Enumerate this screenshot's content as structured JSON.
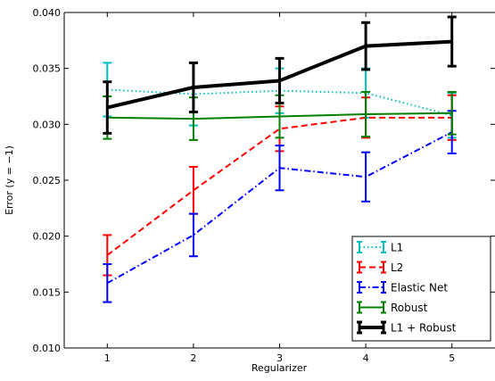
{
  "chart_data": {
    "type": "line",
    "title": "",
    "xlabel": "Regularizer",
    "ylabel": "Error (y = −1)",
    "x": [
      1,
      2,
      3,
      4,
      5
    ],
    "xlim": [
      0.5,
      5.5
    ],
    "ylim": [
      0.01,
      0.04
    ],
    "xticks": [
      "1",
      "2",
      "3",
      "4",
      "5"
    ],
    "yticks": [
      "0.010",
      "0.015",
      "0.020",
      "0.025",
      "0.030",
      "0.035",
      "0.040"
    ],
    "grid": false,
    "legend_position": "lower-right",
    "series": [
      {
        "name": "L1",
        "color": "#00bfbf",
        "line_style": "dotted",
        "values": [
          0.0331,
          0.0327,
          0.033,
          0.0328,
          0.0308
        ],
        "error": [
          0.0024,
          0.0028,
          0.002,
          0.0022,
          0.002
        ]
      },
      {
        "name": "L2",
        "color": "#ff0000",
        "line_style": "dashed",
        "values": [
          0.0183,
          0.0241,
          0.0296,
          0.0306,
          0.0306
        ],
        "error": [
          0.0018,
          0.0021,
          0.002,
          0.0018,
          0.002
        ]
      },
      {
        "name": "Elastic Net",
        "color": "#0000ff",
        "line_style": "dash-dot",
        "values": [
          0.0158,
          0.0201,
          0.0261,
          0.0253,
          0.0293
        ],
        "error": [
          0.0017,
          0.0019,
          0.002,
          0.0022,
          0.0019
        ]
      },
      {
        "name": "Robust",
        "color": "#007f00",
        "line_style": "solid",
        "values": [
          0.0306,
          0.0305,
          0.0307,
          0.0309,
          0.031
        ],
        "error": [
          0.0019,
          0.0019,
          0.0019,
          0.002,
          0.0019
        ]
      },
      {
        "name": "L1 + Robust",
        "color": "#000000",
        "line_style": "solid-thick",
        "values": [
          0.0315,
          0.0333,
          0.0339,
          0.037,
          0.0374
        ],
        "error": [
          0.0023,
          0.0022,
          0.002,
          0.0021,
          0.0022
        ]
      }
    ]
  }
}
